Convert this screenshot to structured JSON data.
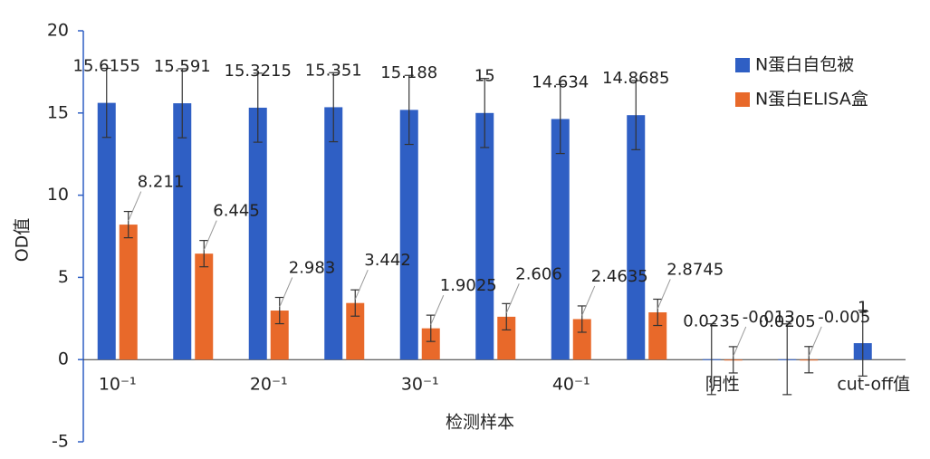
{
  "chart_data": {
    "type": "bar",
    "x_label": "检测样本",
    "y_label": "OD值",
    "categories": [
      "10⁻¹",
      null,
      "20⁻¹",
      null,
      "30⁻¹",
      null,
      "40⁻¹",
      null,
      "阴性",
      null,
      "cut-off值"
    ],
    "series": [
      {
        "name": "N蛋白自包被",
        "color": "#2f5fc4",
        "values": [
          15.6155,
          15.591,
          15.3215,
          15.351,
          15.188,
          15,
          14.634,
          14.8685,
          0.0235,
          0.0205,
          1
        ],
        "errors": [
          2.1,
          2.1,
          2.1,
          2.1,
          2.1,
          2.1,
          2.1,
          2.1,
          2.15,
          2.15,
          2
        ]
      },
      {
        "name": "N蛋白ELISA盒",
        "color": "#e8692a",
        "values": [
          8.211,
          6.445,
          2.983,
          3.442,
          1.9025,
          2.606,
          2.4635,
          2.8745,
          -0.013,
          -0.005,
          null
        ],
        "errors": [
          0.8,
          0.8,
          0.8,
          0.8,
          0.8,
          0.8,
          0.8,
          0.8,
          0.8,
          0.8,
          null
        ]
      }
    ],
    "ylim": [
      -5,
      20
    ],
    "yticks": [
      -5,
      0,
      5,
      10,
      15,
      20
    ],
    "legend": "top-right"
  }
}
